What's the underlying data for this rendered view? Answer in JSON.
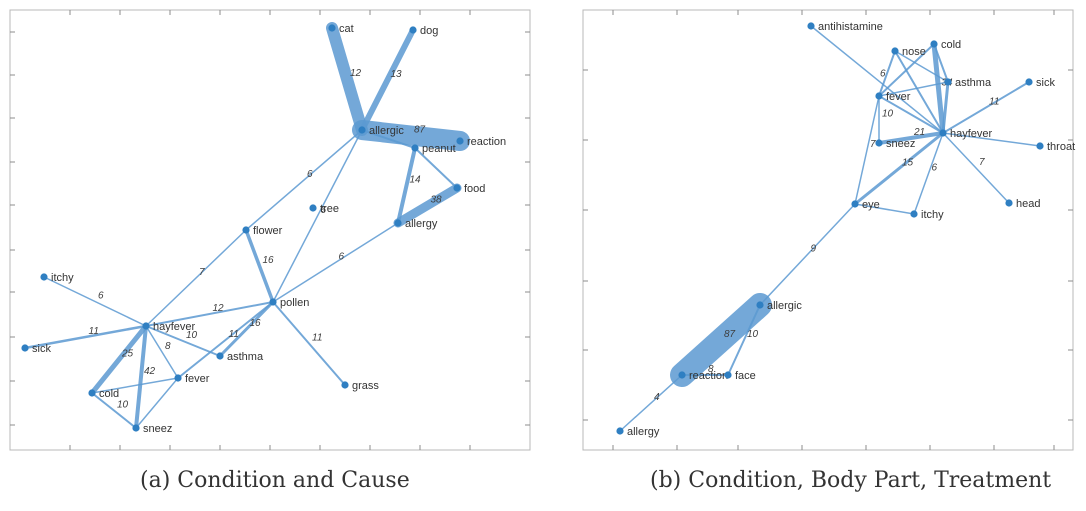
{
  "panels": [
    {
      "caption": "(a) Condition and Cause",
      "nodes": [
        {
          "id": "cat",
          "label": "cat"
        },
        {
          "id": "dog",
          "label": "dog"
        },
        {
          "id": "allergic",
          "label": "allergic"
        },
        {
          "id": "reaction",
          "label": "reaction"
        },
        {
          "id": "peanut",
          "label": "peanut"
        },
        {
          "id": "food",
          "label": "food"
        },
        {
          "id": "allergy",
          "label": "allergy"
        },
        {
          "id": "tree",
          "label": "tree"
        },
        {
          "id": "flower",
          "label": "flower"
        },
        {
          "id": "pollen",
          "label": "pollen"
        },
        {
          "id": "itchy",
          "label": "itchy"
        },
        {
          "id": "hayfever",
          "label": "hayfever"
        },
        {
          "id": "sick",
          "label": "sick"
        },
        {
          "id": "asthma",
          "label": "asthma"
        },
        {
          "id": "fever",
          "label": "fever"
        },
        {
          "id": "cold",
          "label": "cold"
        },
        {
          "id": "sneez",
          "label": "sneez"
        },
        {
          "id": "grass",
          "label": "grass"
        }
      ],
      "edges": [
        {
          "from": "allergic",
          "to": "cat",
          "label": "12",
          "weight": 12
        },
        {
          "from": "allergic",
          "to": "dog",
          "label": "13",
          "weight": 6
        },
        {
          "from": "allergic",
          "to": "reaction",
          "label": "87",
          "weight": 20
        },
        {
          "from": "allergic",
          "to": "peanut",
          "label": "",
          "weight": 2
        },
        {
          "from": "peanut",
          "to": "allergy",
          "label": "14",
          "weight": 4
        },
        {
          "from": "peanut",
          "to": "food",
          "label": "",
          "weight": 2
        },
        {
          "from": "food",
          "to": "allergy",
          "label": "38",
          "weight": 9
        },
        {
          "from": "allergic",
          "to": "flower",
          "label": "6",
          "weight": 1.5
        },
        {
          "from": "allergic",
          "to": "pollen",
          "label": "6",
          "weight": 1.5
        },
        {
          "from": "flower",
          "to": "pollen",
          "label": "16",
          "weight": 3.5
        },
        {
          "from": "flower",
          "to": "hayfever",
          "label": "7",
          "weight": 1.5
        },
        {
          "from": "pollen",
          "to": "allergy",
          "label": "6",
          "weight": 1.5
        },
        {
          "from": "pollen",
          "to": "hayfever",
          "label": "12",
          "weight": 2
        },
        {
          "from": "pollen",
          "to": "asthma",
          "label": "16",
          "weight": 3
        },
        {
          "from": "pollen",
          "to": "grass",
          "label": "11",
          "weight": 2
        },
        {
          "from": "pollen",
          "to": "fever",
          "label": "11",
          "weight": 2
        },
        {
          "from": "itchy",
          "to": "hayfever",
          "label": "6",
          "weight": 1.5
        },
        {
          "from": "hayfever",
          "to": "sick",
          "label": "11",
          "weight": 2.5
        },
        {
          "from": "hayfever",
          "to": "asthma",
          "label": "10",
          "weight": 2
        },
        {
          "from": "hayfever",
          "to": "fever",
          "label": "8",
          "weight": 1.5
        },
        {
          "from": "hayfever",
          "to": "cold",
          "label": "25",
          "weight": 5
        },
        {
          "from": "hayfever",
          "to": "sneez",
          "label": "42",
          "weight": 4
        },
        {
          "from": "cold",
          "to": "fever",
          "label": "",
          "weight": 1.5
        },
        {
          "from": "cold",
          "to": "sneez",
          "label": "10",
          "weight": 2
        },
        {
          "from": "fever",
          "to": "sneez",
          "label": "",
          "weight": 1.5
        }
      ]
    },
    {
      "caption": "(b) Condition, Body Part, Treatment",
      "nodes": [
        {
          "id": "antihistamine",
          "label": "antihistamine"
        },
        {
          "id": "nose",
          "label": "nose"
        },
        {
          "id": "cold",
          "label": "cold"
        },
        {
          "id": "asthma",
          "label": "asthma"
        },
        {
          "id": "sick",
          "label": "sick"
        },
        {
          "id": "fever",
          "label": "fever"
        },
        {
          "id": "hayfever",
          "label": "hayfever"
        },
        {
          "id": "sneez",
          "label": "sneez"
        },
        {
          "id": "throat",
          "label": "throat"
        },
        {
          "id": "head",
          "label": "head"
        },
        {
          "id": "eye",
          "label": "eye"
        },
        {
          "id": "itchy",
          "label": "itchy"
        },
        {
          "id": "allergic",
          "label": "allergic"
        },
        {
          "id": "reaction",
          "label": "reaction"
        },
        {
          "id": "face",
          "label": "face"
        },
        {
          "id": "allergy",
          "label": "allergy"
        }
      ],
      "edges": [
        {
          "from": "antihistamine",
          "to": "hayfever",
          "label": "6",
          "weight": 1.5
        },
        {
          "from": "nose",
          "to": "hayfever",
          "label": "",
          "weight": 2
        },
        {
          "from": "nose",
          "to": "fever",
          "label": "",
          "weight": 2
        },
        {
          "from": "nose",
          "to": "asthma",
          "label": "",
          "weight": 1.5
        },
        {
          "from": "cold",
          "to": "hayfever",
          "label": "34",
          "weight": 5
        },
        {
          "from": "cold",
          "to": "fever",
          "label": "",
          "weight": 2
        },
        {
          "from": "cold",
          "to": "asthma",
          "label": "",
          "weight": 2
        },
        {
          "from": "asthma",
          "to": "hayfever",
          "label": "",
          "weight": 3
        },
        {
          "from": "asthma",
          "to": "fever",
          "label": "",
          "weight": 1.5
        },
        {
          "from": "sick",
          "to": "hayfever",
          "label": "11",
          "weight": 2
        },
        {
          "from": "fever",
          "to": "hayfever",
          "label": "",
          "weight": 2
        },
        {
          "from": "fever",
          "to": "sneez",
          "label": "10",
          "weight": 1.5
        },
        {
          "from": "sneez",
          "to": "hayfever",
          "label": "21",
          "weight": 4
        },
        {
          "from": "hayfever",
          "to": "throat",
          "label": "",
          "weight": 1.5
        },
        {
          "from": "hayfever",
          "to": "head",
          "label": "7",
          "weight": 1.5
        },
        {
          "from": "hayfever",
          "to": "eye",
          "label": "15",
          "weight": 3
        },
        {
          "from": "hayfever",
          "to": "itchy",
          "label": "6",
          "weight": 1.5
        },
        {
          "from": "fever",
          "to": "eye",
          "label": "7",
          "weight": 1.5
        },
        {
          "from": "eye",
          "to": "itchy",
          "label": "",
          "weight": 1.5
        },
        {
          "from": "eye",
          "to": "allergic",
          "label": "9",
          "weight": 1.5
        },
        {
          "from": "allergic",
          "to": "reaction",
          "label": "87",
          "weight": 24
        },
        {
          "from": "allergic",
          "to": "face",
          "label": "10",
          "weight": 2
        },
        {
          "from": "reaction",
          "to": "face",
          "label": "8",
          "weight": 2
        },
        {
          "from": "reaction",
          "to": "allergy",
          "label": "4",
          "weight": 1.5
        }
      ]
    }
  ]
}
